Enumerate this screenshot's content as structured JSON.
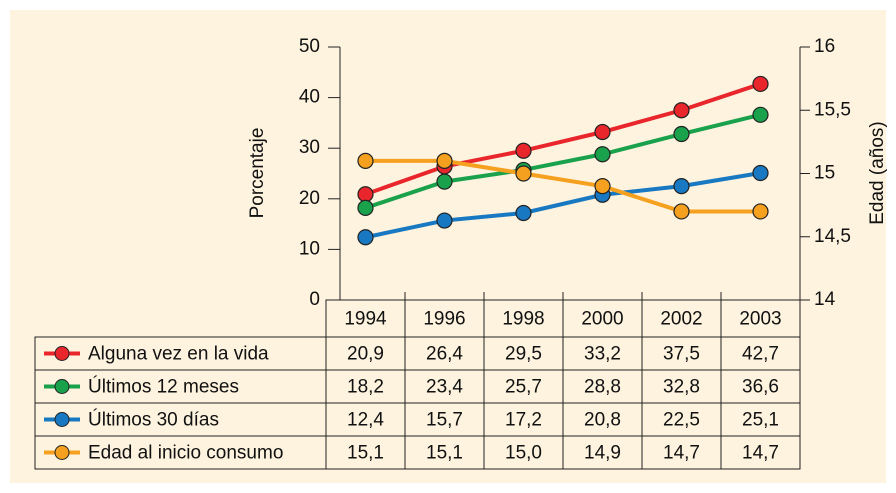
{
  "chart_data": {
    "type": "line",
    "categories": [
      "1994",
      "1996",
      "1998",
      "2000",
      "2002",
      "2003"
    ],
    "ylabel": "Porcentaje",
    "y2label": "Edad (años)",
    "ylim": [
      0,
      50
    ],
    "yticks": [
      0,
      10,
      20,
      30,
      40,
      50
    ],
    "y2lim": [
      14,
      16
    ],
    "y2ticks": [
      14,
      {
        "value": 14.5,
        "label": "14,5"
      },
      15,
      {
        "value": 15.5,
        "label": "15,5"
      },
      16
    ],
    "series": [
      {
        "name": "Alguna vez en la vida",
        "color": "#e8262b",
        "values": [
          20.9,
          26.4,
          29.5,
          33.2,
          37.5,
          42.7
        ],
        "value_labels": [
          "20,9",
          "26,4",
          "29,5",
          "33,2",
          "37,5",
          "42,7"
        ]
      },
      {
        "name": "Últimos 12 meses",
        "color": "#19a24b",
        "values": [
          18.2,
          23.4,
          25.7,
          28.8,
          32.8,
          36.6
        ],
        "value_labels": [
          "18,2",
          "23,4",
          "25,7",
          "28,8",
          "32,8",
          "36,6"
        ]
      },
      {
        "name": "Últimos 30 días",
        "color": "#1878c2",
        "values": [
          12.4,
          15.7,
          17.2,
          20.8,
          22.5,
          25.1
        ],
        "value_labels": [
          "12,4",
          "15,7",
          "17,2",
          "20,8",
          "22,5",
          "25,1"
        ]
      },
      {
        "name": "Edad al inicio consumo",
        "color": "#f5a11f",
        "axis": "y2",
        "values": [
          15.1,
          15.1,
          15.0,
          14.9,
          14.7,
          14.7
        ],
        "value_labels": [
          "15,1",
          "15,1",
          "15,0",
          "14,9",
          "14,7",
          "14,7"
        ]
      }
    ]
  }
}
